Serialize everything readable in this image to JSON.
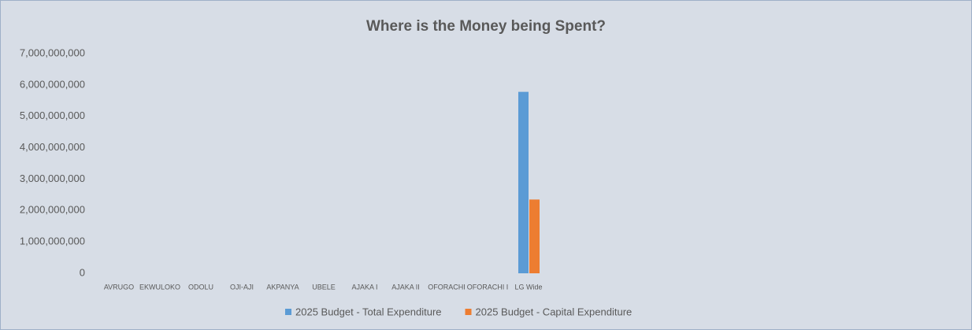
{
  "chart_data": {
    "type": "bar",
    "title": "Where is the Money being Spent?",
    "categories": [
      "AVRUGO",
      "EKWULOKO",
      "ODOLU",
      "OJI-AJI",
      "AKPANYA",
      "UBELE",
      "AJAKA I",
      "AJAKA II",
      "OFORACHI",
      "OFORACHI I",
      "LG Wide",
      null,
      null,
      null,
      null,
      null,
      null,
      null,
      null,
      null,
      null
    ],
    "series": [
      {
        "name": "2025 Budget - Total Expenditure",
        "color": "#5b9bd5",
        "values": [
          0,
          0,
          0,
          0,
          0,
          0,
          0,
          0,
          0,
          0,
          5780000000,
          null,
          null,
          null,
          null,
          null,
          null,
          null,
          null,
          null,
          null
        ]
      },
      {
        "name": "2025 Budget - Capital Expenditure",
        "color": "#ed7d31",
        "values": [
          0,
          0,
          0,
          0,
          0,
          0,
          0,
          0,
          0,
          0,
          2350000000,
          null,
          null,
          null,
          null,
          null,
          null,
          null,
          null,
          null,
          null
        ]
      }
    ],
    "ylim": [
      0,
      7000000000
    ],
    "yticks": [
      0,
      {
        "value": 1000000000,
        "label": "1,000,000,000"
      },
      {
        "value": 2000000000,
        "label": "2,000,000,000"
      },
      {
        "value": 3000000000,
        "label": "3,000,000,000"
      },
      {
        "value": 4000000000,
        "label": "4,000,000,000"
      },
      {
        "value": 5000000000,
        "label": "5,000,000,000"
      },
      {
        "value": 6000000000,
        "label": "6,000,000,000"
      },
      {
        "value": 7000000000,
        "label": "7,000,000,000"
      }
    ],
    "grid": false,
    "legend": "bottom"
  }
}
